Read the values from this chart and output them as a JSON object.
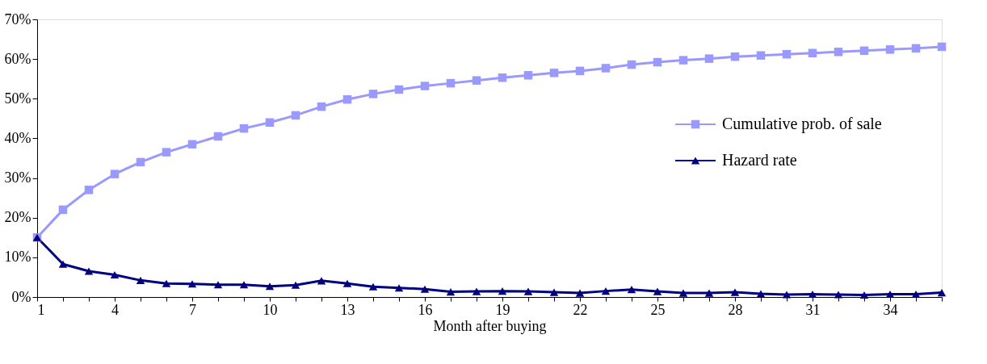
{
  "chart_data": {
    "type": "line",
    "xlabel": "Month after buying",
    "x": [
      1,
      2,
      3,
      4,
      5,
      6,
      7,
      8,
      9,
      10,
      11,
      12,
      13,
      14,
      15,
      16,
      17,
      18,
      19,
      20,
      21,
      22,
      23,
      24,
      25,
      26,
      27,
      28,
      29,
      30,
      31,
      32,
      33,
      34,
      35,
      36
    ],
    "series": [
      {
        "name": "Cumulative prob. of sale",
        "color": "#9999ff",
        "marker": "square",
        "values": [
          15,
          22,
          27,
          31,
          34,
          36.5,
          38.5,
          40.5,
          42.5,
          44,
          45.8,
          48,
          49.8,
          51.2,
          52.3,
          53.2,
          53.9,
          54.6,
          55.3,
          55.9,
          56.5,
          57,
          57.7,
          58.6,
          59.2,
          59.7,
          60.1,
          60.6,
          60.9,
          61.2,
          61.5,
          61.8,
          62.1,
          62.4,
          62.7,
          63.1
        ]
      },
      {
        "name": "Hazard rate",
        "color": "#000080",
        "marker": "triangle",
        "values": [
          15,
          8.3,
          6.5,
          5.6,
          4.2,
          3.4,
          3.3,
          3.1,
          3.1,
          2.7,
          3.0,
          4.1,
          3.4,
          2.6,
          2.3,
          2.0,
          1.3,
          1.4,
          1.5,
          1.4,
          1.2,
          1.0,
          1.5,
          1.9,
          1.4,
          1.0,
          1.0,
          1.2,
          0.8,
          0.6,
          0.7,
          0.6,
          0.5,
          0.7,
          0.7,
          1.1
        ]
      }
    ],
    "xlim": [
      1,
      36
    ],
    "xticks": [
      1,
      {
        "value": 2,
        "label": null
      },
      {
        "value": 3,
        "label": null
      },
      4,
      {
        "value": 5,
        "label": null
      },
      {
        "value": 6,
        "label": null
      },
      7,
      {
        "value": 8,
        "label": null
      },
      {
        "value": 9,
        "label": null
      },
      10,
      {
        "value": 11,
        "label": null
      },
      {
        "value": 12,
        "label": null
      },
      13,
      {
        "value": 14,
        "label": null
      },
      {
        "value": 15,
        "label": null
      },
      16,
      {
        "value": 17,
        "label": null
      },
      {
        "value": 18,
        "label": null
      },
      19,
      {
        "value": 20,
        "label": null
      },
      {
        "value": 21,
        "label": null
      },
      22,
      {
        "value": 23,
        "label": null
      },
      {
        "value": 24,
        "label": null
      },
      25,
      {
        "value": 26,
        "label": null
      },
      {
        "value": 27,
        "label": null
      },
      28,
      {
        "value": 29,
        "label": null
      },
      {
        "value": 30,
        "label": null
      },
      31,
      {
        "value": 32,
        "label": null
      },
      {
        "value": 33,
        "label": null
      },
      34,
      {
        "value": 35,
        "label": null
      },
      {
        "value": 36,
        "label": null
      }
    ],
    "ylim": [
      0,
      70
    ],
    "yticks": [
      {
        "value": 0,
        "label": "0%"
      },
      {
        "value": 10,
        "label": "10%"
      },
      {
        "value": 20,
        "label": "20%"
      },
      {
        "value": 30,
        "label": "30%"
      },
      {
        "value": 40,
        "label": "40%"
      },
      {
        "value": 50,
        "label": "50%"
      },
      {
        "value": 60,
        "label": "60%"
      },
      {
        "value": 70,
        "label": "70%"
      }
    ],
    "grid": false,
    "legend": "right",
    "line_style": "solid"
  }
}
